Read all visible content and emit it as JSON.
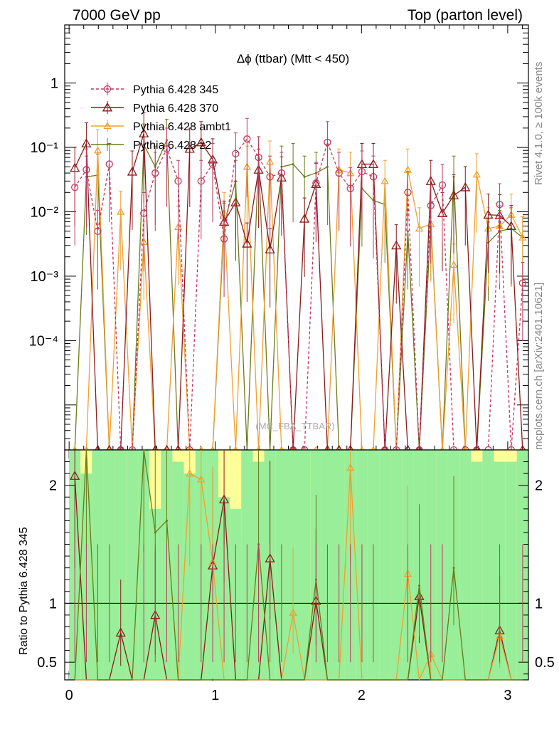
{
  "header": {
    "left": "7000 GeV pp",
    "right": "Top (parton level)"
  },
  "side": {
    "rivet": "Rivet 4.1.0, ≥ 100k events",
    "mcplots": "mcplots.cern.ch [arXiv:2401.10621]"
  },
  "chart_data": {
    "type": "line",
    "title": "Δϕ (ttbar) (Mtt < 450)",
    "watermark": "(MC_FBA_TTBAR)",
    "xlabel": "",
    "ylabel": "",
    "ratio_ylabel": "Ratio to Pythia 6.428 345",
    "xlim": [
      -0.03,
      3.1416
    ],
    "ylim": [
      2e-06,
      8
    ],
    "yscale": "log",
    "ratio_ylim": [
      0.35,
      2.3
    ],
    "x_ticks": [
      "0",
      "1",
      "2",
      "3"
    ],
    "y_ticks": [
      "10⁻⁴",
      "10⁻³",
      "10⁻²",
      "10⁻¹",
      "1"
    ],
    "ratio_ticks": [
      "0.5",
      "1",
      "2"
    ],
    "x": [
      0.039,
      0.118,
      0.196,
      0.275,
      0.353,
      0.432,
      0.511,
      0.589,
      0.668,
      0.746,
      0.825,
      0.903,
      0.982,
      1.06,
      1.139,
      1.217,
      1.296,
      1.374,
      1.453,
      1.532,
      1.61,
      1.689,
      1.767,
      1.846,
      1.924,
      2.003,
      2.081,
      2.16,
      2.238,
      2.317,
      2.395,
      2.474,
      2.553,
      2.631,
      2.71,
      2.788,
      2.867,
      2.945,
      3.024,
      3.102
    ],
    "series": [
      {
        "name": "Pythia 6.428 345",
        "color": "#c0395f",
        "marker": "circle",
        "dashed": true,
        "values": [
          0.024,
          0.045,
          0.005,
          0.055,
          0,
          0,
          0.0095,
          0.04,
          0.095,
          0.03,
          0,
          0.03,
          0.055,
          0.0038,
          0.08,
          0.135,
          0.07,
          0.035,
          0.04,
          0,
          0,
          0.028,
          0.12,
          0.04,
          0.023,
          0.042,
          0.035,
          0,
          0,
          0.02,
          0,
          0.0125,
          0.026,
          0,
          0,
          0,
          0,
          0.013,
          0,
          0.00078
        ]
      },
      {
        "name": "Pythia 6.428 370",
        "color": "#8b1a1a",
        "marker": "triangle",
        "dashed": false,
        "values": [
          0.048,
          0.115,
          0,
          0,
          0,
          0.042,
          0.165,
          0,
          0,
          0,
          0.095,
          0.12,
          0.065,
          0.007,
          0.014,
          0.0032,
          0.045,
          0.0026,
          0.034,
          0,
          0.0078,
          0.027,
          0,
          0,
          0,
          0.055,
          0.055,
          0,
          0.003,
          0,
          0,
          0.03,
          0.0095,
          0.018,
          0.024,
          0,
          0.009,
          0.0088,
          0.006,
          0
        ]
      },
      {
        "name": "Pythia 6.428 ambt1",
        "color": "#f0a030",
        "marker": "triangle",
        "dashed": false,
        "values": [
          0,
          0,
          0.09,
          0,
          0.01,
          0,
          0.0034,
          0,
          0,
          0.0058,
          0,
          0,
          0,
          0.0095,
          0,
          0.05,
          0,
          0.06,
          0,
          0,
          0,
          0,
          0,
          0.045,
          0.04,
          0,
          0,
          0.03,
          0,
          0.045,
          0.0055,
          0.0065,
          0,
          0.0015,
          0,
          0.038,
          0.0055,
          0.006,
          0.009,
          0.004
        ]
      },
      {
        "name": "Pythia 6.428 z2",
        "color": "#6b7a1a",
        "marker": "none",
        "dashed": false,
        "values": [
          0,
          0.035,
          0.037,
          0,
          0,
          0,
          0.11,
          0.05,
          0.13,
          0,
          0,
          0,
          0,
          0.0065,
          0.03,
          0,
          0.07,
          0,
          0.05,
          0.055,
          0.035,
          0.04,
          0.05,
          0,
          0,
          0.023,
          0.015,
          0.013,
          0,
          0.005,
          0,
          0.007,
          0,
          0.035,
          0,
          0,
          0.0033,
          0.005,
          0.0055,
          0.004
        ]
      }
    ],
    "ratio_series": [
      {
        "name": "Pythia 6.428 370",
        "values": [
          2.08,
          0,
          0,
          0,
          0.75,
          0,
          0,
          0.9,
          0,
          0,
          0,
          0,
          1.32,
          1.88,
          0,
          0,
          0,
          1.38,
          0,
          0,
          0,
          1.02,
          0,
          0,
          0,
          0,
          0,
          0,
          0,
          0,
          1.06,
          0,
          0,
          0,
          0,
          0,
          0,
          0.77,
          0,
          0
        ]
      },
      {
        "name": "Pythia 6.428 ambt1",
        "values": [
          0,
          0,
          0,
          0,
          0,
          0,
          0,
          0,
          0,
          0,
          2.1,
          2.05,
          1.35,
          0,
          0,
          0,
          0,
          0,
          0,
          0.92,
          0,
          0,
          0,
          0,
          2.15,
          0,
          0,
          0,
          0,
          1.25,
          0,
          0.57,
          0,
          0,
          0,
          0,
          0,
          0.72,
          0,
          0
        ]
      },
      {
        "name": "Pythia 6.428 z2",
        "values": [
          0,
          2.3,
          0,
          0,
          0,
          0,
          2.3,
          1.6,
          1.7,
          0,
          0,
          0,
          0.1,
          0,
          0,
          0,
          1.5,
          0,
          0,
          0,
          0,
          1.2,
          0,
          0,
          0,
          0,
          0,
          0,
          0,
          0,
          1.15,
          0,
          0,
          1.3,
          0,
          0,
          0,
          0,
          0,
          0
        ]
      }
    ],
    "mc_band_inner": [
      2.3,
      2.1,
      2.3,
      2.3,
      2.3,
      2.3,
      2.3,
      1.8,
      2.3,
      2.2,
      2.1,
      2.3,
      2.3,
      1.9,
      1.8,
      2.3,
      2.2,
      2.3,
      2.3,
      2.3,
      2.3,
      2.3,
      2.3,
      2.3,
      2.3,
      2.3,
      2.3,
      2.3,
      2.3,
      2.3,
      2.3,
      2.3,
      2.3,
      2.3,
      2.3,
      2.2,
      2.3,
      2.2,
      2.2,
      2.3
    ],
    "mc_band_outer": [
      2.3,
      2.3,
      2.3,
      2.3,
      2.3,
      2.3,
      2.3,
      2.3,
      2.3,
      2.3,
      2.3,
      2.3,
      2.3,
      2.3,
      2.3,
      2.3,
      2.3,
      2.3,
      2.3,
      2.3,
      2.3,
      2.3,
      2.3,
      2.3,
      2.3,
      2.3,
      2.3,
      2.3,
      2.3,
      2.3,
      2.3,
      2.3,
      2.3,
      2.3,
      2.3,
      2.3,
      2.3,
      2.3,
      2.3,
      2.3
    ]
  }
}
